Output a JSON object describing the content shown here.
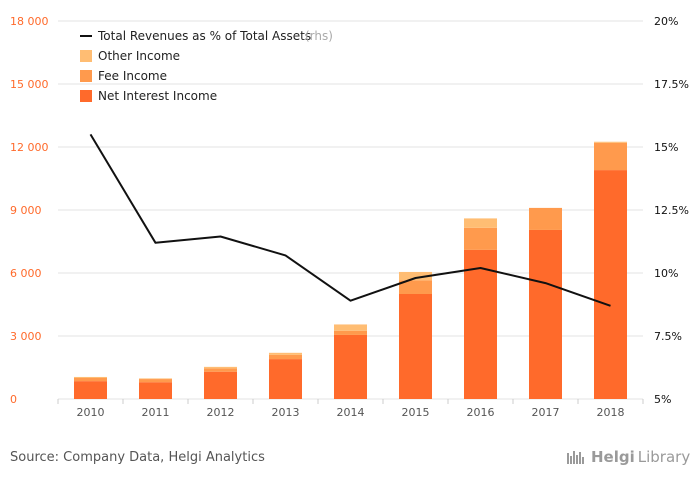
{
  "chart_data": {
    "type": "bar",
    "categories": [
      "2010",
      "2011",
      "2012",
      "2013",
      "2014",
      "2015",
      "2016",
      "2017",
      "2018"
    ],
    "series": [
      {
        "name": "Net Interest Income",
        "values": [
          850,
          800,
          1300,
          1900,
          3050,
          5000,
          7100,
          8050,
          10900
        ],
        "color": "#ff6a2b"
      },
      {
        "name": "Fee Income",
        "values": [
          150,
          150,
          150,
          200,
          200,
          650,
          1050,
          1050,
          1300
        ],
        "color": "#ff9a4d"
      },
      {
        "name": "Other Income",
        "values": [
          50,
          30,
          80,
          100,
          300,
          400,
          450,
          0,
          50
        ],
        "color": "#ffbd73"
      }
    ],
    "line_series": {
      "name": "Total Revenues as % of Total Assets",
      "name_suffix": "(rhs)",
      "values": [
        15.5,
        11.2,
        11.45,
        10.7,
        8.9,
        9.8,
        10.2,
        9.6,
        8.7
      ],
      "color": "#111111"
    },
    "ylim": [
      0,
      18000
    ],
    "yticks": [
      "0",
      "3 000",
      "6 000",
      "9 000",
      "12 000",
      "15 000",
      "18 000"
    ],
    "y2lim": [
      5,
      20
    ],
    "y2ticks": [
      "5%",
      "7.5%",
      "10%",
      "12.5%",
      "15%",
      "17.5%",
      "20%"
    ],
    "grid": true,
    "legend_position": "top-left",
    "colors": {
      "left_tick": "#ff6a2b",
      "right_tick": "#111111",
      "category_tick": "#555555",
      "grid": "#e3e3e3"
    }
  },
  "footer": {
    "source": "Source: Company Data, Helgi Analytics",
    "logo_a": "Helgi",
    "logo_b": "Library"
  }
}
